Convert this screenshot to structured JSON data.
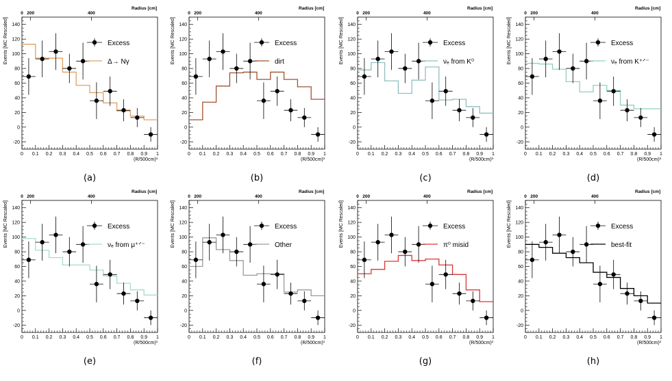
{
  "colors": {
    "excess": "#000000",
    "delta": "#e0a060",
    "dirt": "#a0522d",
    "nue_k0": "#8fbfbf",
    "nue_kpm": "#8fd0c0",
    "nue_mu": "#a8dcc8",
    "other": "#9a9a9a",
    "pi0": "#dd3333",
    "bestfit": "#000000"
  },
  "chart_data": [
    {
      "panel": "(a)",
      "type": "line",
      "top_axis_label": "Radius [cm]",
      "top_ticks": [
        "0",
        "200",
        "400"
      ],
      "ylabel": "Events [MC Rescaled]",
      "xlabel": "(R/500cm)³",
      "xlim": [
        0,
        1
      ],
      "ylim": [
        -30,
        150
      ],
      "yticks": [
        -20,
        0,
        20,
        40,
        60,
        80,
        100,
        120,
        140
      ],
      "xticks": [
        0,
        0.1,
        0.2,
        0.3,
        0.4,
        0.5,
        0.6,
        0.7,
        0.8,
        0.9,
        1
      ],
      "xtick_labels": [
        "0",
        "0.1",
        "0.2",
        "0.3",
        "0.4",
        "0.5",
        "0.6",
        "0.7",
        "0.8",
        "0.9",
        "1"
      ],
      "excess": {
        "name": "Excess",
        "x": [
          0.05,
          0.15,
          0.25,
          0.35,
          0.45,
          0.55,
          0.65,
          0.75,
          0.85,
          0.95
        ],
        "y": [
          69,
          93,
          103,
          80,
          90,
          36,
          49,
          23,
          13,
          -10
        ],
        "yerr": [
          25,
          25,
          25,
          20,
          25,
          25,
          20,
          15,
          13,
          10
        ]
      },
      "step": {
        "name": "Δ→ Nγ",
        "color_key": "delta",
        "values": [
          113,
          94,
          94,
          75,
          57,
          47,
          33,
          22,
          15,
          10
        ]
      }
    },
    {
      "panel": "(b)",
      "type": "line",
      "top_axis_label": "Radius [cm]",
      "top_ticks": [
        "0",
        "200",
        "400"
      ],
      "ylabel": "Events [MC Rescaled]",
      "xlabel": "(R/500cm)³",
      "xlim": [
        0,
        1
      ],
      "ylim": [
        -30,
        150
      ],
      "yticks": [
        -20,
        0,
        20,
        40,
        60,
        80,
        100,
        120,
        140
      ],
      "xticks": [
        0,
        0.1,
        0.2,
        0.3,
        0.4,
        0.5,
        0.6,
        0.7,
        0.8,
        0.9,
        1
      ],
      "xtick_labels": [
        "0",
        "0.1",
        "0.2",
        "0.3",
        "0.4",
        "0.5",
        "0.6",
        "0.7",
        "0.8",
        "0.9",
        "1"
      ],
      "excess": {
        "name": "Excess",
        "x": [
          0.05,
          0.15,
          0.25,
          0.35,
          0.45,
          0.55,
          0.65,
          0.75,
          0.85,
          0.95
        ],
        "y": [
          69,
          93,
          103,
          80,
          90,
          36,
          49,
          23,
          13,
          -10
        ],
        "yerr": [
          25,
          25,
          25,
          20,
          25,
          25,
          20,
          15,
          13,
          10
        ]
      },
      "step": {
        "name": "dirt",
        "color_key": "dirt",
        "values": [
          10,
          34,
          56,
          74,
          75,
          65,
          75,
          65,
          55,
          38
        ]
      }
    },
    {
      "panel": "(c)",
      "type": "line",
      "top_axis_label": "Radius [cm]",
      "top_ticks": [
        "0",
        "200",
        "400"
      ],
      "ylabel": "Events [MC Rescaled]",
      "xlabel": "(R/500cm)³",
      "xlim": [
        0,
        1
      ],
      "ylim": [
        -30,
        150
      ],
      "yticks": [
        -20,
        0,
        20,
        40,
        60,
        80,
        100,
        120,
        140
      ],
      "xticks": [
        0,
        0.1,
        0.2,
        0.3,
        0.4,
        0.5,
        0.6,
        0.7,
        0.8,
        0.9,
        1
      ],
      "xtick_labels": [
        "0",
        "0.1",
        "0.2",
        "0.3",
        "0.4",
        "0.5",
        "0.6",
        "0.7",
        "0.8",
        "0.9",
        "1"
      ],
      "excess": {
        "name": "Excess",
        "x": [
          0.05,
          0.15,
          0.25,
          0.35,
          0.45,
          0.55,
          0.65,
          0.75,
          0.85,
          0.95
        ],
        "y": [
          69,
          93,
          103,
          80,
          90,
          36,
          49,
          23,
          13,
          -10
        ],
        "yerr": [
          25,
          25,
          25,
          20,
          25,
          25,
          20,
          15,
          13,
          10
        ]
      },
      "step": {
        "name": "νₑ from K⁰",
        "color_key": "nue_k0",
        "values": [
          78,
          88,
          63,
          46,
          64,
          82,
          37,
          38,
          28,
          19
        ]
      }
    },
    {
      "panel": "(d)",
      "type": "line",
      "top_axis_label": "Radius [cm]",
      "top_ticks": [
        "0",
        "200",
        "400"
      ],
      "ylabel": "Events [MC Rescaled]",
      "xlabel": "(R/500cm)³",
      "xlim": [
        0,
        1
      ],
      "ylim": [
        -30,
        150
      ],
      "yticks": [
        -20,
        0,
        20,
        40,
        60,
        80,
        100,
        120,
        140
      ],
      "xticks": [
        0,
        0.1,
        0.2,
        0.3,
        0.4,
        0.5,
        0.6,
        0.7,
        0.8,
        0.9,
        1
      ],
      "xtick_labels": [
        "0",
        "0.1",
        "0.2",
        "0.3",
        "0.4",
        "0.5",
        "0.6",
        "0.7",
        "0.8",
        "0.9",
        "1"
      ],
      "excess": {
        "name": "Excess",
        "x": [
          0.05,
          0.15,
          0.25,
          0.35,
          0.45,
          0.55,
          0.65,
          0.75,
          0.85,
          0.95
        ],
        "y": [
          69,
          93,
          103,
          80,
          90,
          36,
          49,
          23,
          13,
          -10
        ],
        "yerr": [
          25,
          25,
          25,
          20,
          25,
          25,
          20,
          15,
          13,
          10
        ]
      },
      "step": {
        "name": "νₑ from K⁺ᐟ⁻",
        "color_key": "nue_kpm",
        "values": [
          87,
          86,
          79,
          62,
          48,
          57,
          50,
          30,
          25,
          25
        ]
      }
    },
    {
      "panel": "(e)",
      "type": "line",
      "top_axis_label": "Radius [cm]",
      "top_ticks": [
        "0",
        "200",
        "400"
      ],
      "ylabel": "Events [MC Rescaled]",
      "xlabel": "(R/500cm)³",
      "xlim": [
        0,
        1
      ],
      "ylim": [
        -30,
        150
      ],
      "yticks": [
        -20,
        0,
        20,
        40,
        60,
        80,
        100,
        120,
        140
      ],
      "xticks": [
        0,
        0.1,
        0.2,
        0.3,
        0.4,
        0.5,
        0.6,
        0.7,
        0.8,
        0.9,
        1
      ],
      "xtick_labels": [
        "0",
        "0.1",
        "0.2",
        "0.3",
        "0.4",
        "0.5",
        "0.6",
        "0.7",
        "0.8",
        "0.9",
        "1"
      ],
      "excess": {
        "name": "Excess",
        "x": [
          0.05,
          0.15,
          0.25,
          0.35,
          0.45,
          0.55,
          0.65,
          0.75,
          0.85,
          0.95
        ],
        "y": [
          69,
          93,
          103,
          80,
          90,
          36,
          49,
          23,
          13,
          -10
        ],
        "yerr": [
          25,
          25,
          25,
          20,
          25,
          25,
          20,
          15,
          13,
          10
        ]
      },
      "step": {
        "name": "νₑ from μ⁺ᐟ⁻",
        "color_key": "nue_mu",
        "values": [
          98,
          82,
          72,
          62,
          62,
          55,
          47,
          37,
          28,
          21
        ]
      }
    },
    {
      "panel": "(f)",
      "type": "line",
      "top_axis_label": "Radius [cm]",
      "top_ticks": [
        "0",
        "200",
        "400"
      ],
      "ylabel": "Events [MC Rescaled]",
      "xlabel": "(R/500cm)³",
      "xlim": [
        0,
        1
      ],
      "ylim": [
        -30,
        150
      ],
      "yticks": [
        -20,
        0,
        20,
        40,
        60,
        80,
        100,
        120,
        140
      ],
      "xticks": [
        0,
        0.1,
        0.2,
        0.3,
        0.4,
        0.5,
        0.6,
        0.7,
        0.8,
        0.9,
        1
      ],
      "xtick_labels": [
        "0",
        "0.1",
        "0.2",
        "0.3",
        "0.4",
        "0.5",
        "0.6",
        "0.7",
        "0.8",
        "0.9",
        "1"
      ],
      "excess": {
        "name": "Excess",
        "x": [
          0.05,
          0.15,
          0.25,
          0.35,
          0.45,
          0.55,
          0.65,
          0.75,
          0.85,
          0.95
        ],
        "y": [
          69,
          93,
          103,
          80,
          90,
          36,
          49,
          23,
          13,
          -10
        ],
        "yerr": [
          25,
          25,
          25,
          20,
          25,
          25,
          20,
          15,
          13,
          10
        ]
      },
      "step": {
        "name": "Other",
        "color_key": "other",
        "values": [
          60,
          99,
          83,
          68,
          48,
          50,
          50,
          25,
          28,
          20
        ]
      }
    },
    {
      "panel": "(g)",
      "type": "line",
      "top_axis_label": "Radius [cm]",
      "top_ticks": [
        "0",
        "200",
        "400"
      ],
      "ylabel": "Events [MC Rescaled]",
      "xlabel": "(R/500cm)³",
      "xlim": [
        0,
        1
      ],
      "ylim": [
        -30,
        150
      ],
      "yticks": [
        -20,
        0,
        20,
        40,
        60,
        80,
        100,
        120,
        140
      ],
      "xticks": [
        0,
        0.1,
        0.2,
        0.3,
        0.4,
        0.5,
        0.6,
        0.7,
        0.8,
        0.9,
        1
      ],
      "xtick_labels": [
        "0",
        "0.1",
        "0.2",
        "0.3",
        "0.4",
        "0.5",
        "0.6",
        "0.7",
        "0.8",
        "0.9",
        "1"
      ],
      "excess": {
        "name": "Excess",
        "x": [
          0.05,
          0.15,
          0.25,
          0.35,
          0.45,
          0.55,
          0.65,
          0.75,
          0.85,
          0.95
        ],
        "y": [
          69,
          93,
          103,
          80,
          90,
          36,
          49,
          23,
          13,
          -10
        ],
        "yerr": [
          25,
          25,
          25,
          20,
          25,
          25,
          20,
          15,
          13,
          10
        ]
      },
      "step": {
        "name": "π⁰ misid",
        "color_key": "pi0",
        "values": [
          50,
          56,
          67,
          75,
          68,
          70,
          62,
          49,
          28,
          12
        ]
      }
    },
    {
      "panel": "(h)",
      "type": "line",
      "top_axis_label": "Radius [cm]",
      "top_ticks": [
        "0",
        "200",
        "400"
      ],
      "ylabel": "Events [MC Rescaled]",
      "xlabel": "(R/500cm)³",
      "xlim": [
        0,
        1
      ],
      "ylim": [
        -30,
        150
      ],
      "yticks": [
        -20,
        0,
        20,
        40,
        60,
        80,
        100,
        120,
        140
      ],
      "xticks": [
        0,
        0.1,
        0.2,
        0.3,
        0.4,
        0.5,
        0.6,
        0.7,
        0.8,
        0.9,
        1
      ],
      "xtick_labels": [
        "0",
        "0.1",
        "0.2",
        "0.3",
        "0.4",
        "0.5",
        "0.6",
        "0.7",
        "0.8",
        "0.9",
        "1"
      ],
      "excess": {
        "name": "Excess",
        "x": [
          0.05,
          0.15,
          0.25,
          0.35,
          0.45,
          0.55,
          0.65,
          0.75,
          0.85,
          0.95
        ],
        "y": [
          69,
          93,
          103,
          80,
          90,
          36,
          49,
          23,
          13,
          -10
        ],
        "yerr": [
          25,
          25,
          25,
          20,
          25,
          25,
          20,
          15,
          13,
          10
        ]
      },
      "step": {
        "name": "best-fit",
        "color_key": "bestfit",
        "values": [
          90,
          86,
          78,
          72,
          65,
          52,
          45,
          30,
          20,
          10
        ]
      }
    }
  ]
}
